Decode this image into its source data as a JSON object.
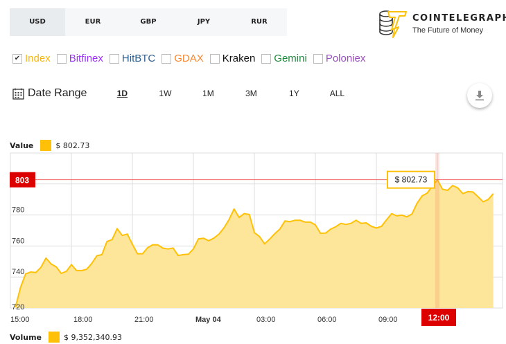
{
  "currencies": [
    {
      "label": "USD",
      "active": true
    },
    {
      "label": "EUR"
    },
    {
      "label": "GBP"
    },
    {
      "label": "JPY"
    },
    {
      "label": "RUR"
    }
  ],
  "logo": {
    "name": "COINTELEGRAPH",
    "tagline": "The Future of Money"
  },
  "exchanges": [
    {
      "label": "Index",
      "color": "#f9b50c",
      "checked": true
    },
    {
      "label": "Bitfinex",
      "color": "#9b30ff"
    },
    {
      "label": "HitBTC",
      "color": "#2c5d8f"
    },
    {
      "label": "GDAX",
      "color": "#f7862b"
    },
    {
      "label": "Kraken",
      "color": "#111111"
    },
    {
      "label": "Gemini",
      "color": "#1e8a3c"
    },
    {
      "label": "Poloniex",
      "color": "#9b4dc0"
    }
  ],
  "date_range": {
    "label": "Date Range",
    "icon": "calendar-icon",
    "options": [
      "1D",
      "1W",
      "1M",
      "3M",
      "1Y",
      "ALL"
    ],
    "active": "1D"
  },
  "download_icon": "download-icon",
  "value_legend": {
    "label": "Value",
    "value": "$ 802.73",
    "color": "#ffc107"
  },
  "volume_legend": {
    "label": "Volume",
    "value": "$ 9,352,340.93",
    "color": "#ffc107"
  },
  "chart_data": {
    "type": "area",
    "ylim": [
      720,
      820
    ],
    "y_ticks": [
      720,
      740,
      760,
      780
    ],
    "x_ticks": [
      "15:00",
      "18:00",
      "21:00",
      "May 04",
      "03:00",
      "06:00",
      "09:00",
      "12:00"
    ],
    "grid": true,
    "line_color": "#ffc107",
    "fill_color": "#fde599",
    "crosshair": {
      "x": "12:00",
      "y_label": "803",
      "tooltip": "$ 802.73",
      "color": "#dd0000"
    },
    "x": [
      "15:15",
      "15:30",
      "15:45",
      "16:00",
      "16:15",
      "16:30",
      "16:45",
      "17:00",
      "17:15",
      "17:30",
      "17:45",
      "18:00",
      "18:15",
      "18:30",
      "18:45",
      "19:00",
      "19:15",
      "19:30",
      "19:45",
      "20:00",
      "20:15",
      "20:30",
      "20:45",
      "21:00",
      "21:15",
      "21:30",
      "21:45",
      "22:00",
      "22:15",
      "22:30",
      "22:45",
      "23:00",
      "23:15",
      "23:30",
      "23:45",
      "00:00",
      "00:15",
      "00:30",
      "00:45",
      "01:00",
      "01:15",
      "01:30",
      "01:45",
      "02:00",
      "02:15",
      "02:30",
      "02:45",
      "03:00",
      "03:15",
      "03:30",
      "03:45",
      "04:00",
      "04:15",
      "04:30",
      "04:45",
      "05:00",
      "05:15",
      "05:30",
      "05:45",
      "06:00",
      "06:15",
      "06:30",
      "06:45",
      "07:00",
      "07:15",
      "07:30",
      "07:45",
      "08:00",
      "08:15",
      "08:30",
      "08:45",
      "09:00",
      "09:15",
      "09:30",
      "09:45",
      "10:00",
      "10:15",
      "10:30",
      "10:45",
      "11:00",
      "11:15",
      "11:30",
      "11:45",
      "12:00",
      "12:15",
      "12:30",
      "12:45",
      "13:00",
      "13:15",
      "13:30",
      "13:45",
      "14:00",
      "14:15",
      "14:30",
      "14:45"
    ],
    "values": [
      720.6,
      733.4,
      742,
      743.2,
      742.9,
      746.2,
      752.2,
      748.4,
      746.6,
      742.3,
      743.6,
      748,
      744.2,
      744.1,
      745,
      748.7,
      753.7,
      754.4,
      762.9,
      764.1,
      771.2,
      766.8,
      767.7,
      761.1,
      755,
      755,
      758.9,
      760.8,
      760.7,
      758.6,
      758.1,
      758.7,
      753.9,
      754.4,
      754.7,
      758.1,
      764.6,
      765,
      763.4,
      765,
      767.6,
      771.6,
      776.9,
      783.9,
      778.4,
      780.9,
      780.3,
      768.6,
      766.1,
      761.4,
      764.4,
      767.9,
      770.9,
      776.1,
      775.7,
      776.6,
      776.6,
      775.4,
      775.4,
      773.6,
      768.2,
      768.3,
      770.9,
      772.4,
      774.6,
      773.9,
      774.6,
      776.6,
      774.6,
      774.9,
      772.7,
      771.6,
      772.7,
      776.9,
      780.9,
      779.4,
      779.9,
      778.8,
      780.6,
      787.6,
      792.3,
      794.1,
      798.6,
      802.73,
      796.6,
      795.9,
      799,
      797.5,
      793.8,
      795.1,
      794.8,
      791.8,
      788.5,
      790,
      793.8
    ]
  }
}
